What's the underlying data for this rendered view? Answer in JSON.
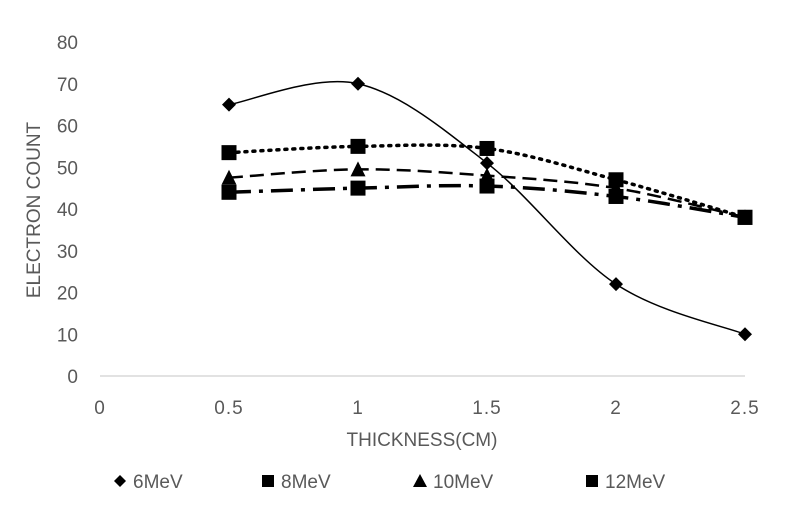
{
  "chart_data": {
    "type": "line",
    "title": "",
    "xlabel": "THICKNESS(CM)",
    "ylabel": "ELECTRON COUNT",
    "xlim": [
      0,
      2.5
    ],
    "ylim": [
      0,
      80
    ],
    "x_ticks": [
      "0",
      "0.5",
      "1",
      "1.5",
      "2",
      "2.5"
    ],
    "y_ticks": [
      "0",
      "10",
      "20",
      "30",
      "40",
      "50",
      "60",
      "70",
      "80"
    ],
    "grid": false,
    "legend_position": "bottom",
    "x": [
      0.5,
      1,
      1.5,
      2,
      2.5
    ],
    "series": [
      {
        "name": "6MeV",
        "values": [
          65,
          70,
          51,
          22,
          10
        ],
        "marker": "diamond",
        "line": "solid",
        "color": "#000000"
      },
      {
        "name": "8MeV",
        "values": [
          53.5,
          55,
          54.5,
          47,
          38
        ],
        "marker": "square",
        "line": "dotted",
        "color": "#000000"
      },
      {
        "name": "10MeV",
        "values": [
          47.5,
          49.5,
          48,
          45,
          38
        ],
        "marker": "triangle",
        "line": "dashed",
        "color": "#000000"
      },
      {
        "name": "12MeV",
        "values": [
          44,
          45,
          45.5,
          43,
          38
        ],
        "marker": "square",
        "line": "dashdot",
        "color": "#000000"
      }
    ]
  }
}
